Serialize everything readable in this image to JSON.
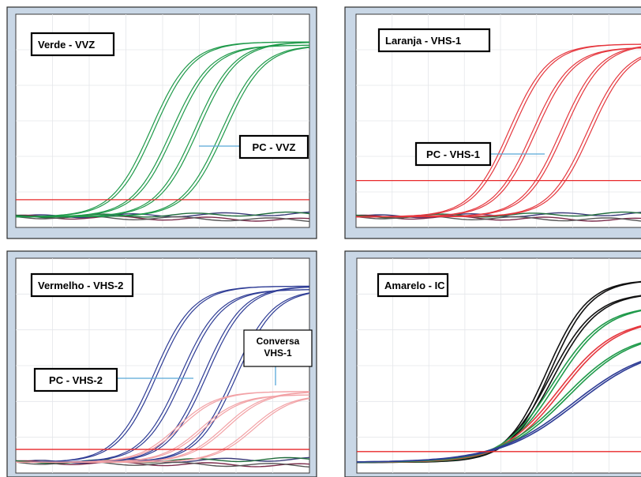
{
  "colors": {
    "frame": "#c9d7e6",
    "threshold": "#e8282a",
    "green": "#1f9a4a",
    "red": "#e5373e",
    "pink": "#f2a1a5",
    "blue": "#2e3c95",
    "black": "#111111"
  },
  "panels": [
    {
      "id": "vvz",
      "label": "Verde - VVZ",
      "annotation": [
        "PC - VVZ"
      ],
      "chart_data": {
        "type": "line",
        "title": "Verde - VVZ",
        "series_description": "amplification curves",
        "series": [
          {
            "name": "PC - VVZ",
            "color": "green",
            "midpoints": [
              0.46,
              0.53,
              0.61,
              0.7
            ],
            "plateau": 0.87
          }
        ],
        "threshold": 0.13
      }
    },
    {
      "id": "vhs1",
      "label": "Laranja - VHS-1",
      "annotation": [
        "PC - VHS-1"
      ],
      "chart_data": {
        "type": "line",
        "title": "Laranja - VHS-1",
        "series": [
          {
            "name": "PC - VHS-1",
            "color": "red",
            "midpoints": [
              0.53,
              0.61,
              0.71,
              0.8
            ],
            "plateau": 0.86
          }
        ],
        "threshold": 0.22
      }
    },
    {
      "id": "vhs2",
      "label": "Vermelho - VHS-2",
      "annotation": [
        "PC - VHS-2",
        "Conversa VHS-1"
      ],
      "chart_data": {
        "type": "line",
        "title": "Vermelho - VHS-2",
        "series": [
          {
            "name": "PC - VHS-2",
            "color": "blue",
            "midpoints": [
              0.47,
              0.56,
              0.64,
              0.74
            ],
            "plateau": 0.87
          },
          {
            "name": "Conversa VHS-1",
            "color": "pink",
            "midpoints": [
              0.55,
              0.63,
              0.71,
              0.8
            ],
            "plateau": 0.38
          }
        ],
        "threshold": 0.11
      }
    },
    {
      "id": "ic",
      "label": "Amarelo - IC",
      "annotation": [],
      "chart_data": {
        "type": "line",
        "title": "Amarelo - IC",
        "series": [
          {
            "name": "IC",
            "color": "mixed",
            "midpoints": [
              0.66,
              0.67,
              0.68,
              0.7,
              0.72,
              0.75
            ],
            "plateau": 0.9
          }
        ],
        "threshold": 0.1
      }
    }
  ]
}
